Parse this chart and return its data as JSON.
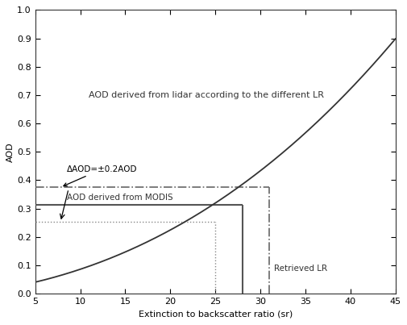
{
  "title": "AOD derived from lidar according to the different LR",
  "xlabel": "Extinction to backscatter ratio (sr)",
  "ylabel": "AOD",
  "xlim": [
    5,
    45
  ],
  "ylim": [
    0,
    1
  ],
  "xticks": [
    5,
    10,
    15,
    20,
    25,
    30,
    35,
    40,
    45
  ],
  "yticks": [
    0,
    0.1,
    0.2,
    0.3,
    0.4,
    0.5,
    0.6,
    0.7,
    0.8,
    0.9,
    1
  ],
  "curve_color": "#333333",
  "modis_aod": 0.313,
  "modis_aod_upper": 0.375,
  "modis_aod_lower": 0.253,
  "retrieved_lr": 28.0,
  "upper_lr": 31.0,
  "lower_lr": 25.0,
  "annotation_text": "ΔAOD=±0.2AOD",
  "modis_label": "AOD derived from MODIS",
  "retrieved_label": "Retrieved LR",
  "curve_pts_x": [
    5,
    8,
    10,
    15,
    20,
    25,
    28,
    30,
    35,
    40,
    45
  ],
  "curve_pts_y": [
    0.038,
    0.072,
    0.093,
    0.148,
    0.215,
    0.305,
    0.365,
    0.415,
    0.575,
    0.755,
    0.935
  ],
  "solid_line_color": "#555555",
  "dash_dot_color": "#666666",
  "dotted_color": "#888888",
  "bg_color": "#ffffff"
}
